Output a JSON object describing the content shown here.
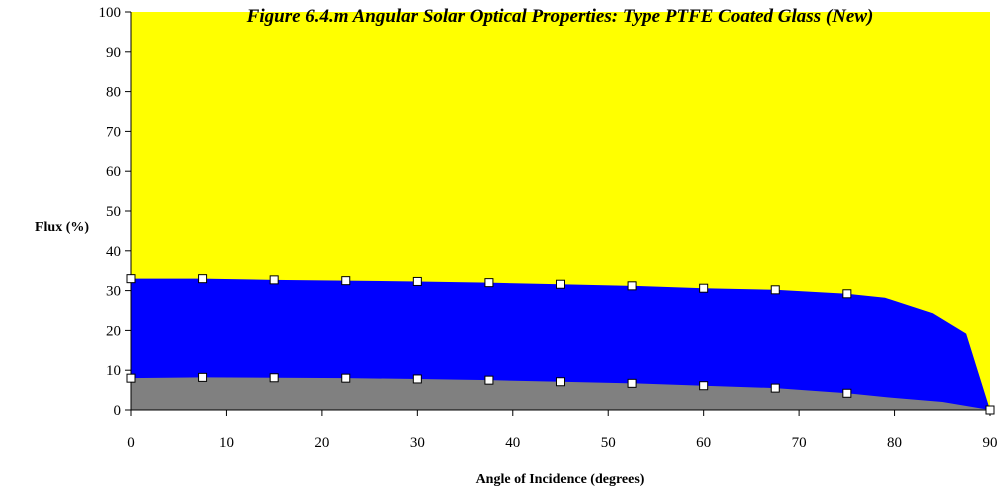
{
  "chart_data": {
    "type": "area",
    "title": "Figure 6.4.m Angular Solar Optical Properties: Type PTFE Coated Glass (New)",
    "xlabel": "Angle of Incidence (degrees)",
    "ylabel": "Flux (%)",
    "xlim": [
      0,
      90
    ],
    "ylim": [
      0,
      100
    ],
    "xticks": [
      0,
      10,
      20,
      30,
      40,
      50,
      60,
      70,
      80,
      90
    ],
    "yticks": [
      0,
      10,
      20,
      30,
      40,
      50,
      60,
      70,
      80,
      90,
      100
    ],
    "grid": false,
    "legend": "none",
    "stacking": "cumulative",
    "series": [
      {
        "color": "#808080",
        "x": [
          0,
          7.5,
          15,
          22.5,
          30,
          37.5,
          45,
          52.5,
          60,
          67.5,
          75,
          80,
          85,
          90
        ],
        "values": [
          8,
          8.2,
          8.1,
          8.0,
          7.8,
          7.5,
          7.1,
          6.7,
          6.1,
          5.5,
          4.2,
          3.0,
          2.0,
          0
        ],
        "markers": [
          true,
          true,
          true,
          true,
          true,
          true,
          true,
          true,
          true,
          true,
          true,
          false,
          false,
          true
        ]
      },
      {
        "color": "#0000ff",
        "x": [
          0,
          7.5,
          15,
          22.5,
          30,
          37.5,
          45,
          52.5,
          60,
          67.5,
          75,
          79,
          84,
          87.5,
          90
        ],
        "values": [
          33,
          33,
          32.7,
          32.5,
          32.3,
          32,
          31.6,
          31.2,
          30.6,
          30.2,
          29.2,
          28.2,
          24.3,
          19.2,
          0
        ],
        "markers": [
          true,
          true,
          true,
          true,
          true,
          true,
          true,
          true,
          true,
          true,
          true,
          false,
          false,
          false,
          true
        ]
      },
      {
        "color": "#ffff00",
        "x": [
          0,
          90
        ],
        "values": [
          100,
          100
        ],
        "markers": [
          false,
          false
        ]
      }
    ]
  }
}
